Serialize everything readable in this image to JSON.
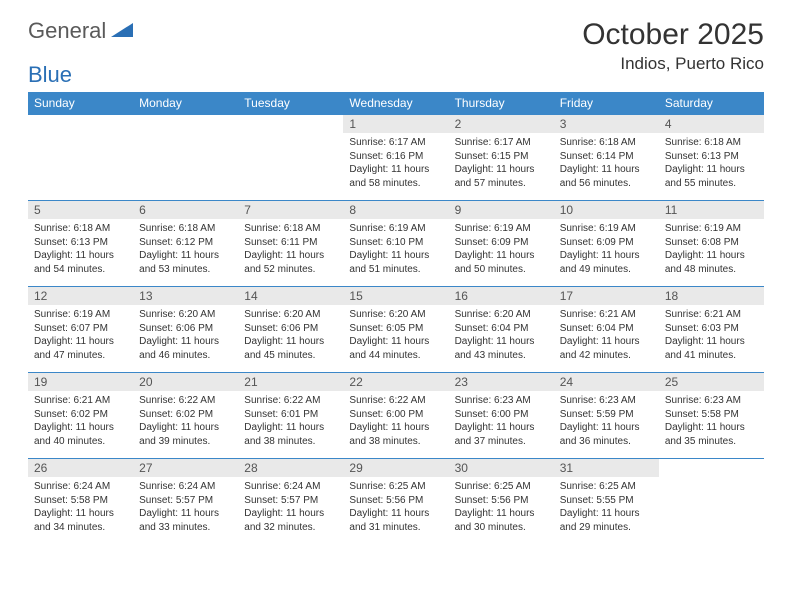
{
  "logo": {
    "general": "General",
    "blue": "Blue"
  },
  "title": "October 2025",
  "location": "Indios, Puerto Rico",
  "colors": {
    "header_bg": "#3b87c8",
    "header_text": "#ffffff",
    "daynum_bg": "#e9e9e9",
    "border": "#3b87c8",
    "accent": "#2a6fb5"
  },
  "weekdays": [
    "Sunday",
    "Monday",
    "Tuesday",
    "Wednesday",
    "Thursday",
    "Friday",
    "Saturday"
  ],
  "weeks": [
    [
      null,
      null,
      null,
      {
        "n": "1",
        "sr": "Sunrise: 6:17 AM",
        "ss": "Sunset: 6:16 PM",
        "dl": "Daylight: 11 hours and 58 minutes."
      },
      {
        "n": "2",
        "sr": "Sunrise: 6:17 AM",
        "ss": "Sunset: 6:15 PM",
        "dl": "Daylight: 11 hours and 57 minutes."
      },
      {
        "n": "3",
        "sr": "Sunrise: 6:18 AM",
        "ss": "Sunset: 6:14 PM",
        "dl": "Daylight: 11 hours and 56 minutes."
      },
      {
        "n": "4",
        "sr": "Sunrise: 6:18 AM",
        "ss": "Sunset: 6:13 PM",
        "dl": "Daylight: 11 hours and 55 minutes."
      }
    ],
    [
      {
        "n": "5",
        "sr": "Sunrise: 6:18 AM",
        "ss": "Sunset: 6:13 PM",
        "dl": "Daylight: 11 hours and 54 minutes."
      },
      {
        "n": "6",
        "sr": "Sunrise: 6:18 AM",
        "ss": "Sunset: 6:12 PM",
        "dl": "Daylight: 11 hours and 53 minutes."
      },
      {
        "n": "7",
        "sr": "Sunrise: 6:18 AM",
        "ss": "Sunset: 6:11 PM",
        "dl": "Daylight: 11 hours and 52 minutes."
      },
      {
        "n": "8",
        "sr": "Sunrise: 6:19 AM",
        "ss": "Sunset: 6:10 PM",
        "dl": "Daylight: 11 hours and 51 minutes."
      },
      {
        "n": "9",
        "sr": "Sunrise: 6:19 AM",
        "ss": "Sunset: 6:09 PM",
        "dl": "Daylight: 11 hours and 50 minutes."
      },
      {
        "n": "10",
        "sr": "Sunrise: 6:19 AM",
        "ss": "Sunset: 6:09 PM",
        "dl": "Daylight: 11 hours and 49 minutes."
      },
      {
        "n": "11",
        "sr": "Sunrise: 6:19 AM",
        "ss": "Sunset: 6:08 PM",
        "dl": "Daylight: 11 hours and 48 minutes."
      }
    ],
    [
      {
        "n": "12",
        "sr": "Sunrise: 6:19 AM",
        "ss": "Sunset: 6:07 PM",
        "dl": "Daylight: 11 hours and 47 minutes."
      },
      {
        "n": "13",
        "sr": "Sunrise: 6:20 AM",
        "ss": "Sunset: 6:06 PM",
        "dl": "Daylight: 11 hours and 46 minutes."
      },
      {
        "n": "14",
        "sr": "Sunrise: 6:20 AM",
        "ss": "Sunset: 6:06 PM",
        "dl": "Daylight: 11 hours and 45 minutes."
      },
      {
        "n": "15",
        "sr": "Sunrise: 6:20 AM",
        "ss": "Sunset: 6:05 PM",
        "dl": "Daylight: 11 hours and 44 minutes."
      },
      {
        "n": "16",
        "sr": "Sunrise: 6:20 AM",
        "ss": "Sunset: 6:04 PM",
        "dl": "Daylight: 11 hours and 43 minutes."
      },
      {
        "n": "17",
        "sr": "Sunrise: 6:21 AM",
        "ss": "Sunset: 6:04 PM",
        "dl": "Daylight: 11 hours and 42 minutes."
      },
      {
        "n": "18",
        "sr": "Sunrise: 6:21 AM",
        "ss": "Sunset: 6:03 PM",
        "dl": "Daylight: 11 hours and 41 minutes."
      }
    ],
    [
      {
        "n": "19",
        "sr": "Sunrise: 6:21 AM",
        "ss": "Sunset: 6:02 PM",
        "dl": "Daylight: 11 hours and 40 minutes."
      },
      {
        "n": "20",
        "sr": "Sunrise: 6:22 AM",
        "ss": "Sunset: 6:02 PM",
        "dl": "Daylight: 11 hours and 39 minutes."
      },
      {
        "n": "21",
        "sr": "Sunrise: 6:22 AM",
        "ss": "Sunset: 6:01 PM",
        "dl": "Daylight: 11 hours and 38 minutes."
      },
      {
        "n": "22",
        "sr": "Sunrise: 6:22 AM",
        "ss": "Sunset: 6:00 PM",
        "dl": "Daylight: 11 hours and 38 minutes."
      },
      {
        "n": "23",
        "sr": "Sunrise: 6:23 AM",
        "ss": "Sunset: 6:00 PM",
        "dl": "Daylight: 11 hours and 37 minutes."
      },
      {
        "n": "24",
        "sr": "Sunrise: 6:23 AM",
        "ss": "Sunset: 5:59 PM",
        "dl": "Daylight: 11 hours and 36 minutes."
      },
      {
        "n": "25",
        "sr": "Sunrise: 6:23 AM",
        "ss": "Sunset: 5:58 PM",
        "dl": "Daylight: 11 hours and 35 minutes."
      }
    ],
    [
      {
        "n": "26",
        "sr": "Sunrise: 6:24 AM",
        "ss": "Sunset: 5:58 PM",
        "dl": "Daylight: 11 hours and 34 minutes."
      },
      {
        "n": "27",
        "sr": "Sunrise: 6:24 AM",
        "ss": "Sunset: 5:57 PM",
        "dl": "Daylight: 11 hours and 33 minutes."
      },
      {
        "n": "28",
        "sr": "Sunrise: 6:24 AM",
        "ss": "Sunset: 5:57 PM",
        "dl": "Daylight: 11 hours and 32 minutes."
      },
      {
        "n": "29",
        "sr": "Sunrise: 6:25 AM",
        "ss": "Sunset: 5:56 PM",
        "dl": "Daylight: 11 hours and 31 minutes."
      },
      {
        "n": "30",
        "sr": "Sunrise: 6:25 AM",
        "ss": "Sunset: 5:56 PM",
        "dl": "Daylight: 11 hours and 30 minutes."
      },
      {
        "n": "31",
        "sr": "Sunrise: 6:25 AM",
        "ss": "Sunset: 5:55 PM",
        "dl": "Daylight: 11 hours and 29 minutes."
      },
      null
    ]
  ]
}
